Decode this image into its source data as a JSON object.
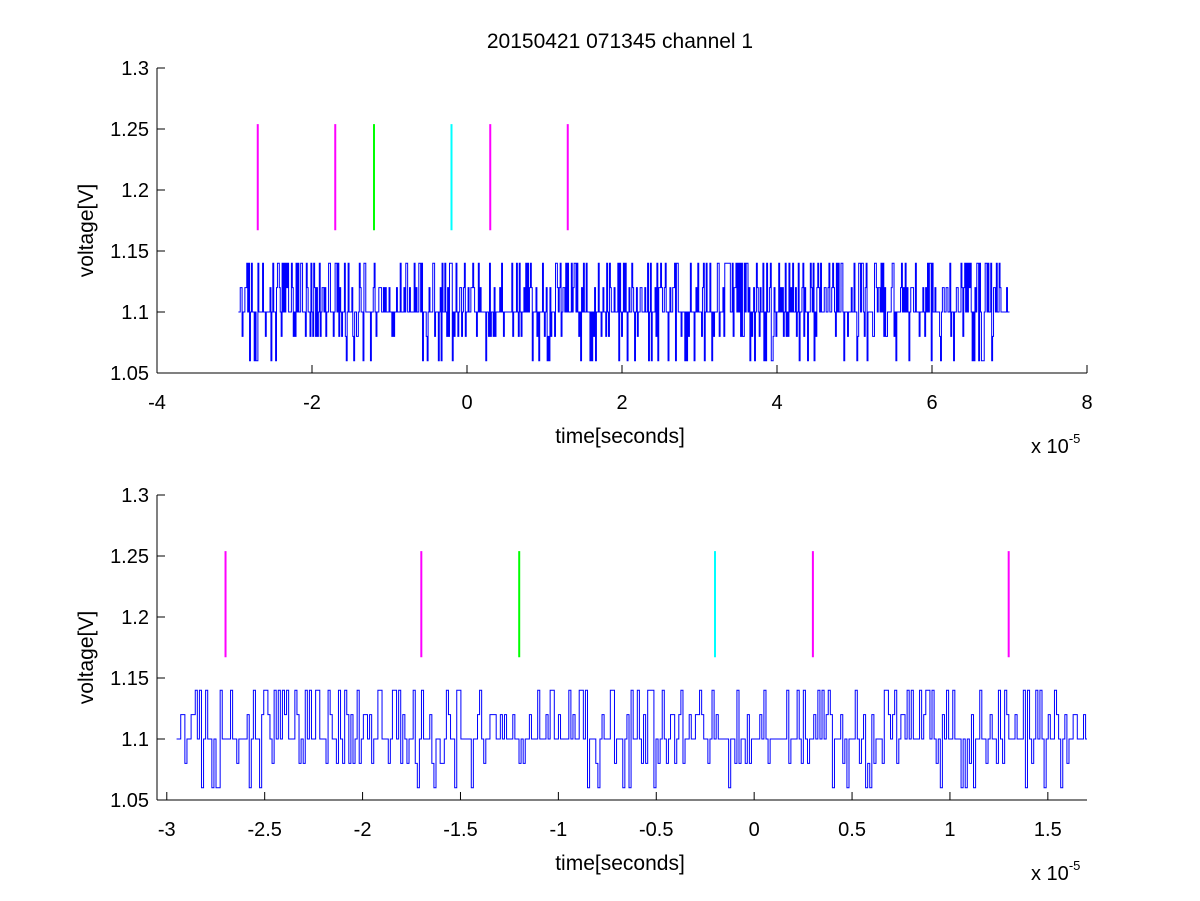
{
  "title": "20150421 071345 channel 1",
  "chart_data": [
    {
      "type": "line",
      "xlabel": "time[seconds]",
      "ylabel": "voltage[V]",
      "x_exponent_label": "x 10",
      "x_exponent_value": "-5",
      "xlim": [
        -4,
        8
      ],
      "ylim": [
        1.05,
        1.3
      ],
      "xticks": [
        -4,
        -2,
        0,
        2,
        4,
        6,
        8
      ],
      "xtick_labels": [
        "-4",
        "-2",
        "0",
        "2",
        "4",
        "6",
        "8"
      ],
      "yticks": [
        1.05,
        1.1,
        1.15,
        1.2,
        1.25,
        1.3
      ],
      "ytick_labels": [
        "1.05",
        "1.1",
        "1.15",
        "1.2",
        "1.25",
        "1.3"
      ],
      "grid": false,
      "series": [
        {
          "color": "#0000ff",
          "signal_x_range": [
            -2.95,
            7.0
          ],
          "levels": [
            1.06,
            1.08,
            1.1,
            1.12,
            1.14
          ],
          "baseline": 1.1
        }
      ],
      "markers": [
        {
          "x": -2.7,
          "y": [
            1.167,
            1.254
          ],
          "color": "#ff00ff"
        },
        {
          "x": -1.7,
          "y": [
            1.167,
            1.254
          ],
          "color": "#ff00ff"
        },
        {
          "x": -1.2,
          "y": [
            1.167,
            1.254
          ],
          "color": "#00ff00"
        },
        {
          "x": -0.2,
          "y": [
            1.167,
            1.254
          ],
          "color": "#00ffff"
        },
        {
          "x": 0.3,
          "y": [
            1.167,
            1.254
          ],
          "color": "#ff00ff"
        },
        {
          "x": 1.3,
          "y": [
            1.167,
            1.254
          ],
          "color": "#ff00ff"
        }
      ]
    },
    {
      "type": "line",
      "xlabel": "time[seconds]",
      "ylabel": "voltage[V]",
      "x_exponent_label": "x 10",
      "x_exponent_value": "-5",
      "xlim": [
        -3.05,
        1.7
      ],
      "ylim": [
        1.05,
        1.3
      ],
      "xticks": [
        -3,
        -2.5,
        -2,
        -1.5,
        -1,
        -0.5,
        0,
        0.5,
        1,
        1.5
      ],
      "xtick_labels": [
        "-3",
        "-2.5",
        "-2",
        "-1.5",
        "-1",
        "-0.5",
        "0",
        "0.5",
        "1",
        "1.5"
      ],
      "yticks": [
        1.05,
        1.1,
        1.15,
        1.2,
        1.25,
        1.3
      ],
      "ytick_labels": [
        "1.05",
        "1.1",
        "1.15",
        "1.2",
        "1.25",
        "1.3"
      ],
      "grid": false,
      "series": [
        {
          "color": "#0000ff",
          "signal_x_range": [
            -2.95,
            1.7
          ],
          "levels": [
            1.06,
            1.08,
            1.1,
            1.12,
            1.14
          ],
          "baseline": 1.1
        }
      ],
      "markers": [
        {
          "x": -2.7,
          "y": [
            1.167,
            1.254
          ],
          "color": "#ff00ff"
        },
        {
          "x": -1.7,
          "y": [
            1.167,
            1.254
          ],
          "color": "#ff00ff"
        },
        {
          "x": -1.2,
          "y": [
            1.167,
            1.254
          ],
          "color": "#00ff00"
        },
        {
          "x": -0.2,
          "y": [
            1.167,
            1.254
          ],
          "color": "#00ffff"
        },
        {
          "x": 0.3,
          "y": [
            1.167,
            1.254
          ],
          "color": "#ff00ff"
        },
        {
          "x": 1.3,
          "y": [
            1.167,
            1.254
          ],
          "color": "#ff00ff"
        }
      ]
    }
  ]
}
